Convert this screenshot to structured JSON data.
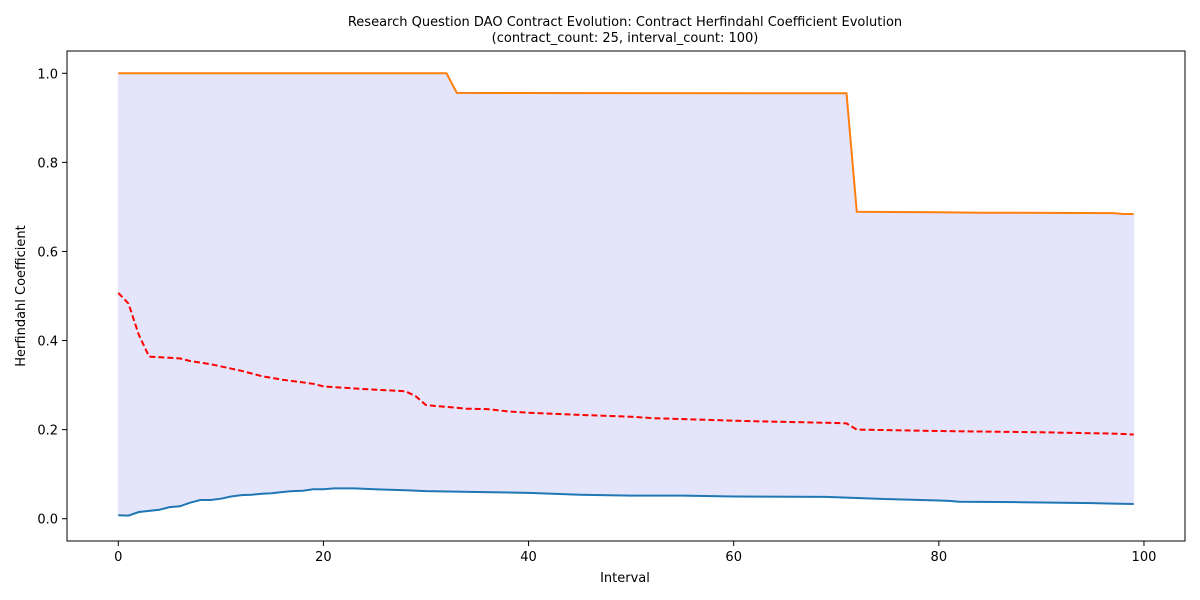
{
  "chart_data": {
    "type": "line",
    "title": "Research Question DAO Contract Evolution: Contract Herfindahl Coefficient Evolution",
    "subtitle": "(contract_count: 25, interval_count: 100)",
    "xlabel": "Interval",
    "ylabel": "Herfindahl Coefficient",
    "xlim": [
      -5,
      104
    ],
    "ylim": [
      -0.05,
      1.05
    ],
    "xticks": [
      "0",
      "20",
      "40",
      "60",
      "80",
      "100"
    ],
    "yticks": [
      "0.0",
      "0.2",
      "0.4",
      "0.6",
      "0.8",
      "1.0"
    ],
    "grid": false,
    "legend": "none",
    "colors": {
      "min": "#1f77b4",
      "max": "#ff7f0e",
      "mean": "#ff0000",
      "band": "#e4e4fb"
    },
    "series": [
      {
        "role": "max",
        "style": "solid",
        "x": [
          0,
          32,
          33,
          71,
          72,
          80,
          84,
          97,
          98,
          99
        ],
        "y": [
          1.0,
          1.0,
          0.956,
          0.955,
          0.689,
          0.688,
          0.687,
          0.686,
          0.684,
          0.684
        ]
      },
      {
        "role": "mean",
        "style": "dashed",
        "x": [
          0,
          1,
          2,
          3,
          6,
          7,
          9,
          12,
          14,
          16,
          19,
          20,
          24,
          28,
          29,
          30,
          34,
          36,
          38,
          40,
          45,
          50,
          52,
          60,
          62,
          70,
          71,
          72,
          80,
          90,
          97,
          99
        ],
        "y": [
          0.507,
          0.483,
          0.413,
          0.364,
          0.36,
          0.354,
          0.347,
          0.332,
          0.32,
          0.312,
          0.303,
          0.297,
          0.291,
          0.286,
          0.275,
          0.255,
          0.247,
          0.246,
          0.241,
          0.238,
          0.233,
          0.229,
          0.226,
          0.22,
          0.219,
          0.215,
          0.214,
          0.2,
          0.197,
          0.194,
          0.191,
          0.189
        ]
      },
      {
        "role": "min",
        "style": "solid",
        "x": [
          0,
          1,
          2,
          4,
          5,
          6,
          7,
          8,
          9,
          10,
          11,
          12,
          13,
          14,
          15,
          16,
          17,
          18,
          19,
          20,
          21,
          22,
          23,
          25,
          28,
          30,
          35,
          40,
          45,
          50,
          55,
          60,
          69,
          70,
          75,
          80,
          81,
          82,
          88,
          95,
          97,
          99
        ],
        "y": [
          0.008,
          0.007,
          0.015,
          0.02,
          0.026,
          0.028,
          0.036,
          0.042,
          0.042,
          0.045,
          0.05,
          0.053,
          0.054,
          0.056,
          0.057,
          0.06,
          0.062,
          0.063,
          0.066,
          0.066,
          0.068,
          0.068,
          0.068,
          0.066,
          0.064,
          0.062,
          0.06,
          0.058,
          0.054,
          0.052,
          0.052,
          0.05,
          0.049,
          0.048,
          0.044,
          0.041,
          0.04,
          0.038,
          0.037,
          0.035,
          0.034,
          0.033
        ]
      }
    ]
  }
}
